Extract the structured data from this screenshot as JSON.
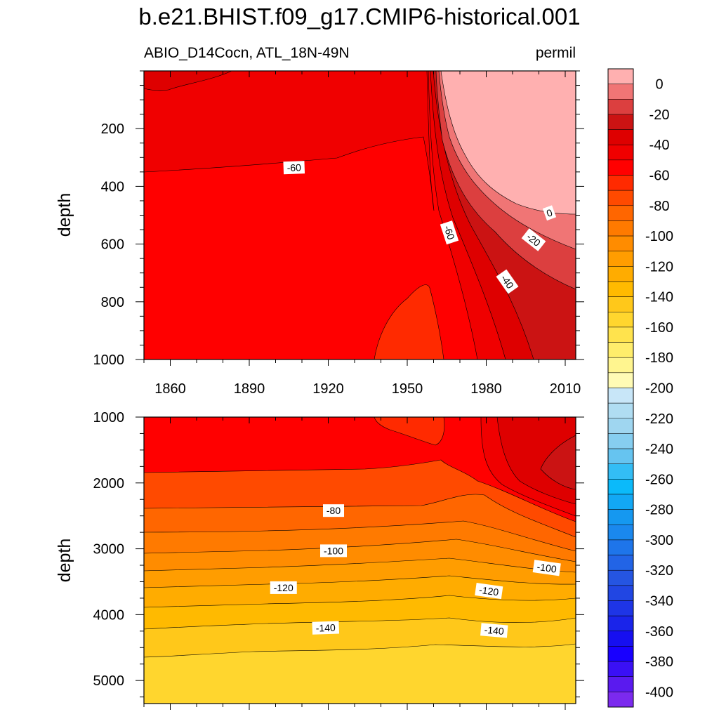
{
  "title": "b.e21.BHIST.f09_g17.CMIP6-historical.001",
  "subtitle_left": "ABIO_D14Cocn, ATL_18N-49N",
  "subtitle_right": "permil",
  "chart_data": [
    {
      "type": "contour",
      "panel": "upper",
      "xlabel": "",
      "ylabel": "depth",
      "xlim": [
        1850,
        2014
      ],
      "ylim": [
        1000,
        0
      ],
      "xticks": [
        1860,
        1890,
        1920,
        1950,
        1980,
        2010
      ],
      "yticks": [
        200,
        400,
        600,
        800,
        1000
      ],
      "contour_labels": [
        {
          "text": "-60",
          "x": 1907,
          "y": 335,
          "rotation": -2
        },
        {
          "text": "-60",
          "x": 1966,
          "y": 560,
          "rotation": 72
        },
        {
          "text": "0",
          "x": 2004,
          "y": 492,
          "rotation": -20
        },
        {
          "text": "-20",
          "x": 1998,
          "y": 585,
          "rotation": 38
        },
        {
          "text": "-40",
          "x": 1988,
          "y": 730,
          "rotation": 55
        }
      ],
      "regions": [
        {
          "value": "-60 to -50",
          "description": "upper layer 0-350 m before 1960"
        },
        {
          "value": "-70 to -60",
          "description": "bulk of panel"
        },
        {
          "value": "-80 to -70",
          "description": "patch near 1940-1960 below 750 m"
        },
        {
          "value": "> 0",
          "description": "surface after ~1965 (bomb radiocarbon)"
        }
      ]
    },
    {
      "type": "contour",
      "panel": "lower",
      "xlabel": "",
      "ylabel": "depth",
      "xlim": [
        1850,
        2014
      ],
      "ylim": [
        5350,
        1000
      ],
      "xticks": [
        1860,
        1890,
        1920,
        1950,
        1980,
        2010
      ],
      "yticks": [
        1000,
        2000,
        3000,
        4000,
        5000
      ],
      "contour_labels": [
        {
          "text": "-80",
          "x": 1922,
          "y": 2420,
          "rotation": 0
        },
        {
          "text": "-100",
          "x": 1922,
          "y": 3030,
          "rotation": 0
        },
        {
          "text": "-100",
          "x": 2003,
          "y": 3290,
          "rotation": 8
        },
        {
          "text": "-120",
          "x": 1903,
          "y": 3590,
          "rotation": 0
        },
        {
          "text": "-120",
          "x": 1981,
          "y": 3640,
          "rotation": 8
        },
        {
          "text": "-140",
          "x": 1919,
          "y": 4200,
          "rotation": -2
        },
        {
          "text": "-140",
          "x": 1983,
          "y": 4240,
          "rotation": 5
        }
      ]
    }
  ],
  "colorbar": {
    "tick_labels": [
      "0",
      "-20",
      "-40",
      "-60",
      "-80",
      "-100",
      "-120",
      "-140",
      "-160",
      "-180",
      "-200",
      "-220",
      "-240",
      "-260",
      "-280",
      "-300",
      "-320",
      "-340",
      "-360",
      "-380",
      "-400"
    ],
    "tick_values": [
      0,
      -20,
      -40,
      -60,
      -80,
      -100,
      -120,
      -140,
      -160,
      -180,
      -200,
      -220,
      -240,
      -260,
      -280,
      -300,
      -320,
      -340,
      -360,
      -380,
      -400
    ],
    "levels": [
      10,
      0,
      -10,
      -20,
      -30,
      -40,
      -50,
      -60,
      -70,
      -80,
      -90,
      -100,
      -110,
      -120,
      -130,
      -140,
      -150,
      -160,
      -170,
      -180,
      -190,
      -200,
      -210,
      -220,
      -230,
      -240,
      -250,
      -260,
      -270,
      -280,
      -290,
      -300,
      -310,
      -320,
      -330,
      -340,
      -350,
      -360,
      -370,
      -380,
      -390,
      -400,
      -410
    ],
    "colors": [
      "#FFB0B0",
      "#F07575",
      "#DC3F3F",
      "#CB1313",
      "#DE0000",
      "#F00000",
      "#FF0000",
      "#FF2A00",
      "#FF4A00",
      "#FF6600",
      "#FF7A00",
      "#FF8C00",
      "#FF9D00",
      "#FFAC00",
      "#FFBA00",
      "#FFC81A",
      "#FFD62E",
      "#FFE34D",
      "#FFED6B",
      "#FFF58F",
      "#FFFBB5",
      "#C8E6F8",
      "#B0DDF2",
      "#9FD6F0",
      "#86CEF0",
      "#66C4F0",
      "#33BDF5",
      "#0BBAFA",
      "#12A8F5",
      "#1598F0",
      "#1A88EE",
      "#1E75EA",
      "#2264E6",
      "#2555E2",
      "#2146E3",
      "#1E35E6",
      "#1A24EA",
      "#160FF0",
      "#1800FF",
      "#3A10F5",
      "#5A1AEF",
      "#7B2AEE"
    ]
  }
}
